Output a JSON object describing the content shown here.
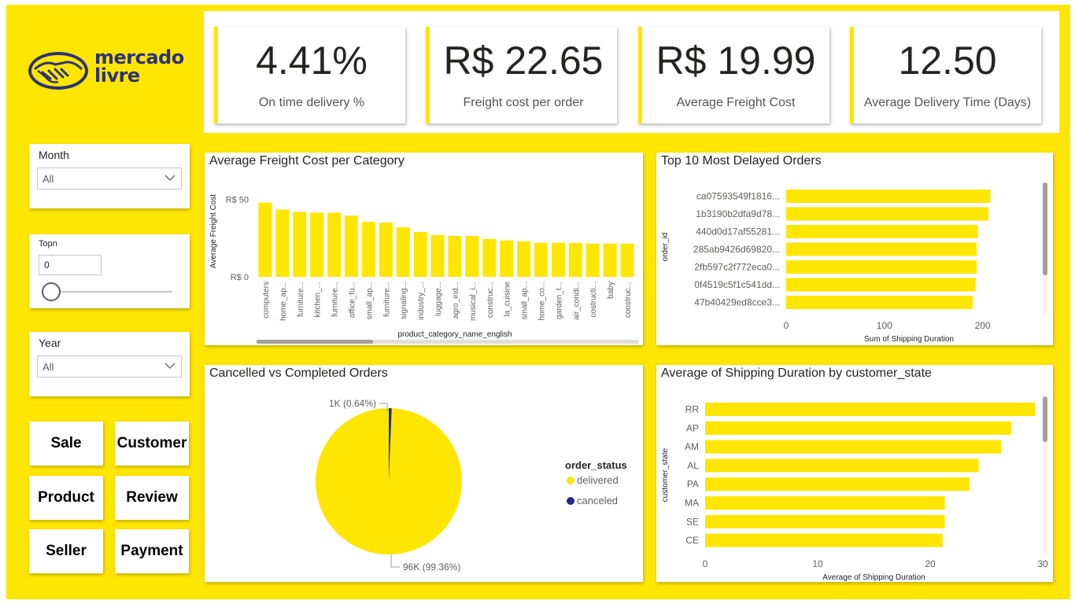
{
  "logo": {
    "line1": "mercado",
    "line2": "livre"
  },
  "kpis": [
    {
      "value": "4.41%",
      "label": "On time delivery %"
    },
    {
      "value": "R$ 22.65",
      "label": "Freight cost per order"
    },
    {
      "value": "R$ 19.99",
      "label": "Average Freight Cost"
    },
    {
      "value": "12.50",
      "label": "Average Delivery Time (Days)"
    }
  ],
  "slicers": {
    "month": {
      "title": "Month",
      "value": "All"
    },
    "topn": {
      "title": "Topn",
      "value": "0"
    },
    "year": {
      "title": "Year",
      "value": "All"
    }
  },
  "nav": {
    "sale": "Sale",
    "customer": "Customer",
    "product": "Product",
    "review": "Review",
    "seller": "Seller",
    "payment": "Payment"
  },
  "colors": {
    "accent": "#FFE600",
    "canceled": "#1E2A8C",
    "logo": "#2D3277"
  },
  "chart_data": [
    {
      "id": "freight",
      "type": "bar",
      "title": "Average Freight Cost per Category",
      "xlabel": "product_category_name_english",
      "ylabel": "Average Freight Cost",
      "yticks": [
        "R$ 0",
        "R$ 50"
      ],
      "ylim": [
        0,
        60
      ],
      "categories": [
        "computers",
        "home_ap...",
        "furniture...",
        "kitchen_...",
        "furniture...",
        "office_fu...",
        "small_ap...",
        "furniture...",
        "signaling...",
        "industry_...",
        "luggage...",
        "agro_ind...",
        "musical_i...",
        "construc...",
        "la_cuisine",
        "small_ap...",
        "home_co...",
        "garden_t...",
        "air_condi...",
        "costructi...",
        "baby",
        "construc..."
      ],
      "values": [
        48.0,
        43.5,
        42.0,
        41.5,
        41.5,
        39.5,
        35.5,
        35.0,
        32.0,
        29.0,
        27.0,
        26.5,
        26.5,
        24.5,
        23.5,
        23.0,
        22.0,
        22.0,
        22.0,
        21.5,
        21.5,
        21.5
      ]
    },
    {
      "id": "delayed",
      "type": "bar",
      "orientation": "horizontal",
      "title": "Top 10 Most Delayed Orders",
      "xlabel": "Sum of Shipping Duration",
      "ylabel": "order_id",
      "xlim": [
        0,
        250
      ],
      "xticks": [
        0,
        100,
        200
      ],
      "categories": [
        "ca07593549f1816...",
        "1b3190b2dfa9d78...",
        "440d0d17af55281...",
        "285ab9426d69820...",
        "2fb597c2f772eca0...",
        "0f4519c5f1c541dd...",
        "47b40429ed8cce3..."
      ],
      "values": [
        208,
        206,
        195,
        194,
        194,
        193,
        190
      ]
    },
    {
      "id": "orders",
      "type": "pie",
      "title": "Cancelled vs Completed Orders",
      "legend_title": "order_status",
      "labels": [
        "delivered",
        "canceled"
      ],
      "values": [
        99.36,
        0.64
      ],
      "data_labels": [
        "96K (99.36%)",
        "1K (0.64%)"
      ],
      "legend_position": "right"
    },
    {
      "id": "state",
      "type": "bar",
      "orientation": "horizontal",
      "title": "Average of Shipping Duration by customer_state",
      "xlabel": "Average of Shipping Duration",
      "ylabel": "customer_state",
      "xlim": [
        0,
        30
      ],
      "xticks": [
        0,
        10,
        20,
        30
      ],
      "categories": [
        "RR",
        "AP",
        "AM",
        "AL",
        "PA",
        "MA",
        "SE",
        "CE"
      ],
      "values": [
        29.3,
        27.2,
        26.3,
        24.3,
        23.5,
        21.3,
        21.3,
        21.1
      ]
    }
  ]
}
